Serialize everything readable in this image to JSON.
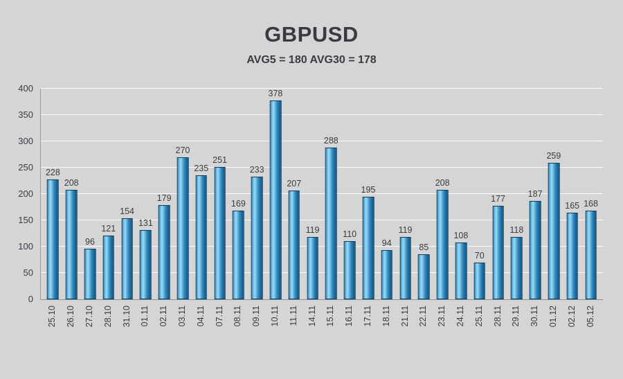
{
  "title": "GBPUSD",
  "subtitle": "AVG5 = 180 AVG30 = 178",
  "chart_data": {
    "type": "bar",
    "title": "GBPUSD",
    "subtitle": "AVG5 = 180 AVG30 = 178",
    "categories": [
      "25.10",
      "26.10",
      "27.10",
      "28.10",
      "31.10",
      "01.11",
      "02.11",
      "03.11",
      "04.11",
      "07.11",
      "08.11",
      "09.11",
      "10.11",
      "11.11",
      "14.11",
      "15.11",
      "16.11",
      "17.11",
      "18.11",
      "21.11",
      "22.11",
      "23.11",
      "24.11",
      "25.11",
      "28.11",
      "29.11",
      "30.11",
      "01.12",
      "02.12",
      "05.12"
    ],
    "values": [
      228,
      208,
      96,
      121,
      154,
      131,
      179,
      270,
      235,
      251,
      169,
      233,
      378,
      207,
      119,
      288,
      110,
      195,
      94,
      119,
      85,
      208,
      108,
      70,
      177,
      118,
      187,
      259,
      165,
      168
    ],
    "xlabel": "",
    "ylabel": "",
    "ylim": [
      0,
      400
    ],
    "yticks": [
      0,
      50,
      100,
      150,
      200,
      250,
      300,
      350,
      400
    ],
    "grid": true,
    "legend_position": "none",
    "value_labels": true
  },
  "colors": {
    "background": "#d5d5d5",
    "text": "#3a3a42",
    "gridline": "#ffffff",
    "axis": "#9a9a9a",
    "bar_gradient": [
      "#3c91c6",
      "#9adcf8",
      "#2e86be",
      "#10547f"
    ],
    "bar_border": "#0d3b5c"
  }
}
